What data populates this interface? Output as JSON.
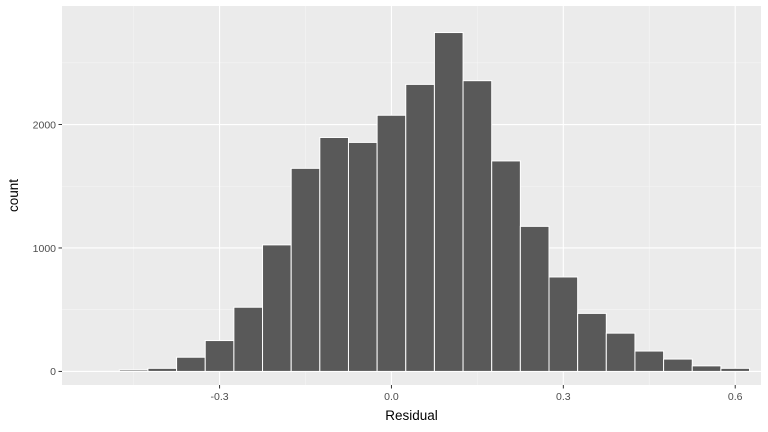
{
  "chart_data": {
    "type": "bar",
    "title": "",
    "xlabel": "Residual",
    "ylabel": "count",
    "xlim": [
      -0.575,
      0.645
    ],
    "ylim": [
      -110,
      2960
    ],
    "bin_width": 0.05,
    "bins": [
      {
        "x0": -0.475,
        "x1": -0.425,
        "count": 12
      },
      {
        "x0": -0.425,
        "x1": -0.375,
        "count": 25
      },
      {
        "x0": -0.375,
        "x1": -0.325,
        "count": 115
      },
      {
        "x0": -0.325,
        "x1": -0.275,
        "count": 250
      },
      {
        "x0": -0.275,
        "x1": -0.225,
        "count": 520
      },
      {
        "x0": -0.225,
        "x1": -0.175,
        "count": 1025
      },
      {
        "x0": -0.175,
        "x1": -0.125,
        "count": 1645
      },
      {
        "x0": -0.125,
        "x1": -0.075,
        "count": 1895
      },
      {
        "x0": -0.075,
        "x1": -0.025,
        "count": 1855
      },
      {
        "x0": -0.025,
        "x1": 0.025,
        "count": 2075
      },
      {
        "x0": 0.025,
        "x1": 0.075,
        "count": 2325
      },
      {
        "x0": 0.075,
        "x1": 0.125,
        "count": 2745
      },
      {
        "x0": 0.125,
        "x1": 0.175,
        "count": 2355
      },
      {
        "x0": 0.175,
        "x1": 0.225,
        "count": 1705
      },
      {
        "x0": 0.225,
        "x1": 0.275,
        "count": 1175
      },
      {
        "x0": 0.275,
        "x1": 0.325,
        "count": 765
      },
      {
        "x0": 0.325,
        "x1": 0.375,
        "count": 470
      },
      {
        "x0": 0.375,
        "x1": 0.425,
        "count": 310
      },
      {
        "x0": 0.425,
        "x1": 0.475,
        "count": 165
      },
      {
        "x0": 0.475,
        "x1": 0.525,
        "count": 100
      },
      {
        "x0": 0.525,
        "x1": 0.575,
        "count": 45
      },
      {
        "x0": 0.575,
        "x1": 0.625,
        "count": 25
      }
    ],
    "x_ticks": [
      {
        "value": -0.3,
        "label": "-0.3"
      },
      {
        "value": 0.0,
        "label": "0.0"
      },
      {
        "value": 0.3,
        "label": "0.3"
      },
      {
        "value": 0.6,
        "label": "0.6"
      }
    ],
    "y_ticks": [
      {
        "value": 0,
        "label": "0"
      },
      {
        "value": 1000,
        "label": "1000"
      },
      {
        "value": 2000,
        "label": "2000"
      }
    ],
    "grid": true,
    "colors": {
      "panel_background": "#ebebeb",
      "grid_major": "#ffffff",
      "grid_minor": "#f5f5f5",
      "bar_fill": "#595959",
      "bar_outline": "#ffffff",
      "tick_color": "#333333"
    }
  }
}
